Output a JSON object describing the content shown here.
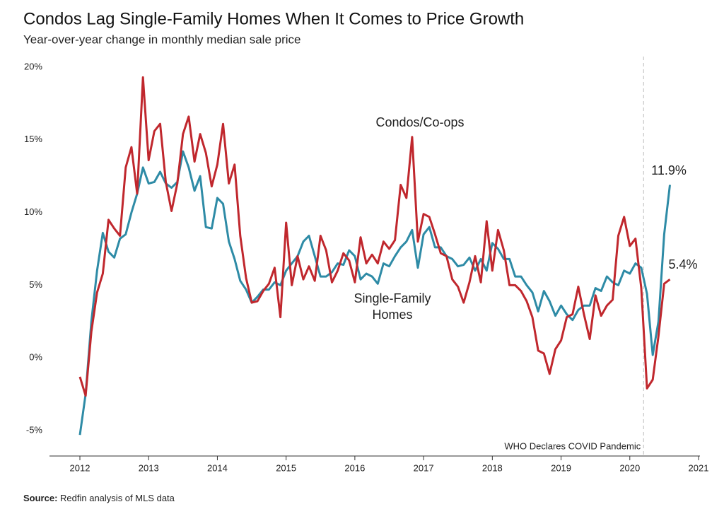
{
  "chart_data": {
    "type": "line",
    "title": "Condos Lag Single-Family Homes When It Comes to Price Growth",
    "subtitle": "Year-over-year change in monthly median sale price",
    "source_label": "Source:",
    "source": "Redfin analysis of MLS data",
    "x": [
      2012.0,
      2012.083,
      2012.167,
      2012.25,
      2012.333,
      2012.417,
      2012.5,
      2012.583,
      2012.667,
      2012.75,
      2012.833,
      2012.917,
      2013.0,
      2013.083,
      2013.167,
      2013.25,
      2013.333,
      2013.417,
      2013.5,
      2013.583,
      2013.667,
      2013.75,
      2013.833,
      2013.917,
      2014.0,
      2014.083,
      2014.167,
      2014.25,
      2014.333,
      2014.417,
      2014.5,
      2014.583,
      2014.667,
      2014.75,
      2014.833,
      2014.917,
      2015.0,
      2015.083,
      2015.167,
      2015.25,
      2015.333,
      2015.417,
      2015.5,
      2015.583,
      2015.667,
      2015.75,
      2015.833,
      2015.917,
      2016.0,
      2016.083,
      2016.167,
      2016.25,
      2016.333,
      2016.417,
      2016.5,
      2016.583,
      2016.667,
      2016.75,
      2016.833,
      2016.917,
      2017.0,
      2017.083,
      2017.167,
      2017.25,
      2017.333,
      2017.417,
      2017.5,
      2017.583,
      2017.667,
      2017.75,
      2017.833,
      2017.917,
      2018.0,
      2018.083,
      2018.167,
      2018.25,
      2018.333,
      2018.417,
      2018.5,
      2018.583,
      2018.667,
      2018.75,
      2018.833,
      2018.917,
      2019.0,
      2019.083,
      2019.167,
      2019.25,
      2019.333,
      2019.417,
      2019.5,
      2019.583,
      2019.667,
      2019.75,
      2019.833,
      2019.917,
      2020.0,
      2020.083,
      2020.167,
      2020.25,
      2020.333,
      2020.417,
      2020.5,
      2020.583
    ],
    "series": [
      {
        "name": "Single-Family Homes",
        "color": "#2e8ba6",
        "end_label": "11.9%",
        "values": [
          -5.3,
          -2.5,
          2.5,
          6.0,
          8.6,
          7.3,
          6.9,
          8.2,
          8.5,
          10.0,
          11.3,
          13.1,
          12.0,
          12.1,
          12.8,
          12.0,
          11.7,
          12.1,
          14.2,
          13.1,
          11.5,
          12.5,
          9.0,
          8.9,
          11.0,
          10.6,
          8.0,
          6.8,
          5.3,
          4.7,
          3.8,
          4.2,
          4.7,
          4.7,
          5.2,
          5.0,
          6.0,
          6.5,
          7.0,
          8.0,
          8.4,
          7.0,
          5.6,
          5.6,
          5.9,
          6.5,
          6.4,
          7.4,
          7.0,
          5.4,
          5.8,
          5.6,
          5.1,
          6.5,
          6.3,
          7.0,
          7.6,
          8.0,
          8.8,
          6.2,
          8.5,
          9.0,
          7.6,
          7.6,
          7.0,
          6.8,
          6.3,
          6.4,
          6.9,
          6.0,
          6.8,
          6.0,
          7.9,
          7.5,
          6.8,
          6.8,
          5.6,
          5.6,
          5.0,
          4.5,
          3.2,
          4.6,
          3.9,
          2.9,
          3.6,
          3.0,
          2.6,
          3.3,
          3.6,
          3.6,
          4.8,
          4.6,
          5.6,
          5.2,
          5.0,
          6.0,
          5.8,
          6.5,
          6.2,
          4.4,
          0.2,
          2.5,
          8.5,
          11.9
        ]
      },
      {
        "name": "Condos/Co-ops",
        "color": "#c0272d",
        "end_label": "5.4%",
        "values": [
          -1.3,
          -2.6,
          1.8,
          4.5,
          5.8,
          9.5,
          8.9,
          8.4,
          13.1,
          14.5,
          11.3,
          19.3,
          13.6,
          15.6,
          16.1,
          12.1,
          10.1,
          12.0,
          15.4,
          16.6,
          13.5,
          15.4,
          14.1,
          11.8,
          13.3,
          16.1,
          12.0,
          13.3,
          8.4,
          5.5,
          3.8,
          3.9,
          4.6,
          5.1,
          6.2,
          2.8,
          9.3,
          5.0,
          7.0,
          5.4,
          6.3,
          5.3,
          8.4,
          7.4,
          5.2,
          6.0,
          7.2,
          6.7,
          5.2,
          8.3,
          6.5,
          7.1,
          6.5,
          8.0,
          7.5,
          8.1,
          11.9,
          11.0,
          15.2,
          8.0,
          9.9,
          9.7,
          8.5,
          7.2,
          7.0,
          5.4,
          4.9,
          3.8,
          5.2,
          7.0,
          5.2,
          9.4,
          6.0,
          8.8,
          7.4,
          5.0,
          5.0,
          4.6,
          3.9,
          2.8,
          0.5,
          0.3,
          -1.1,
          0.6,
          1.2,
          2.8,
          3.0,
          4.9,
          3.0,
          1.3,
          4.3,
          2.9,
          3.6,
          4.0,
          8.4,
          9.7,
          7.7,
          8.2,
          4.8,
          -2.1,
          -1.5,
          1.5,
          5.1,
          5.4
        ]
      }
    ],
    "annotations": [
      {
        "text": "WHO Declares COVID Pandemic",
        "x": 2020.2
      }
    ],
    "xlim": [
      2012,
      2021
    ],
    "xticks": [
      2012,
      2013,
      2014,
      2015,
      2016,
      2017,
      2018,
      2019,
      2020,
      2021
    ],
    "ylim": [
      -5,
      20
    ],
    "yticks": [
      {
        "value": -5,
        "label": "-5%"
      },
      {
        "value": 0,
        "label": "0%"
      },
      {
        "value": 5,
        "label": "5%"
      },
      {
        "value": 10,
        "label": "10%"
      },
      {
        "value": 15,
        "label": "15%"
      },
      {
        "value": 20,
        "label": "20%"
      }
    ],
    "grid": false
  }
}
